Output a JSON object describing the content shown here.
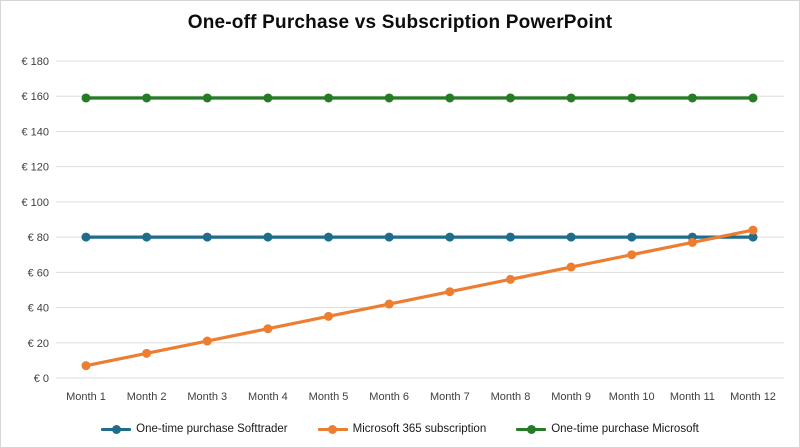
{
  "figure": {
    "background": "#FFFFFF",
    "border_color": "#D6D6D6"
  },
  "chart_data": {
    "type": "line",
    "title": "One-off Purchase vs Subscription PowerPoint",
    "categories": [
      "Month 1",
      "Month 2",
      "Month 3",
      "Month 4",
      "Month 5",
      "Month 6",
      "Month 7",
      "Month 8",
      "Month 9",
      "Month 10",
      "Month 11",
      "Month 12"
    ],
    "series": [
      {
        "name": "One-time purchase Softtrader",
        "color": "#1F6C8B",
        "values": [
          80,
          80,
          80,
          80,
          80,
          80,
          80,
          80,
          80,
          80,
          80,
          80
        ]
      },
      {
        "name": "Microsoft 365 subscription",
        "color": "#ED7D31",
        "values": [
          7,
          14,
          21,
          28,
          35,
          42,
          49,
          56,
          63,
          70,
          77,
          84
        ]
      },
      {
        "name": "One-time purchase Microsoft",
        "color": "#257C25",
        "values": [
          159,
          159,
          159,
          159,
          159,
          159,
          159,
          159,
          159,
          159,
          159,
          159
        ]
      }
    ],
    "xlabel": "",
    "ylabel": "",
    "ylim": [
      0,
      180
    ],
    "y_tick_step": 20,
    "y_tick_labels": [
      "€ 0",
      "€ 20",
      "€ 40",
      "€ 60",
      "€ 80",
      "€ 100",
      "€ 120",
      "€ 140",
      "€ 160",
      "€ 180"
    ],
    "currency_prefix": "€",
    "grid": "horizontal",
    "grid_color": "#DDDDDD",
    "axis_text_color": "#404040",
    "legend_position": "bottom",
    "marker": "circle"
  }
}
